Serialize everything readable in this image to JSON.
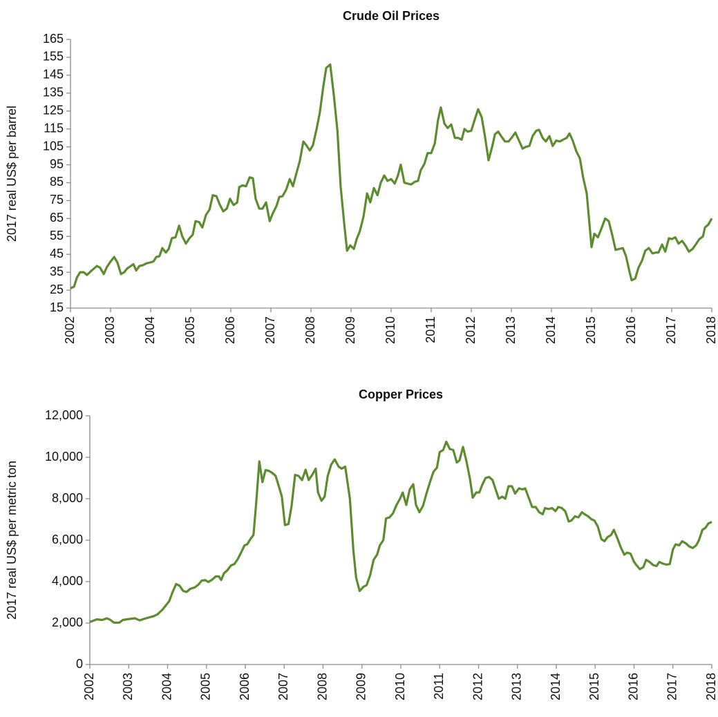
{
  "chart_data": [
    {
      "type": "line",
      "title": "Crude Oil Prices",
      "ylabel": "2017 real US$ per barrel",
      "color": "#5b8c2d",
      "xlim": [
        2002,
        2018
      ],
      "xticks": [
        2002,
        2003,
        2004,
        2005,
        2006,
        2007,
        2008,
        2009,
        2010,
        2011,
        2012,
        2013,
        2014,
        2015,
        2016,
        2017,
        2018
      ],
      "ylim": [
        15,
        165
      ],
      "yticks": [
        15,
        25,
        35,
        45,
        55,
        65,
        75,
        85,
        95,
        105,
        115,
        125,
        135,
        145,
        155,
        165
      ],
      "x": [
        2002.0,
        2002.09,
        2002.16,
        2002.24,
        2002.33,
        2002.41,
        2002.53,
        2002.66,
        2002.74,
        2002.83,
        2002.91,
        2003.0,
        2003.09,
        2003.17,
        2003.26,
        2003.34,
        2003.41,
        2003.57,
        2003.64,
        2003.72,
        2003.81,
        2003.9,
        2004.0,
        2004.07,
        2004.14,
        2004.22,
        2004.29,
        2004.38,
        2004.45,
        2004.53,
        2004.62,
        2004.71,
        2004.79,
        2004.88,
        2004.97,
        2005.05,
        2005.12,
        2005.21,
        2005.29,
        2005.38,
        2005.47,
        2005.55,
        2005.64,
        2005.72,
        2005.81,
        2005.9,
        2005.98,
        2006.07,
        2006.16,
        2006.21,
        2006.29,
        2006.38,
        2006.47,
        2006.55,
        2006.62,
        2006.71,
        2006.79,
        2006.88,
        2006.97,
        2007.05,
        2007.14,
        2007.21,
        2007.29,
        2007.38,
        2007.47,
        2007.55,
        2007.64,
        2007.72,
        2007.81,
        2007.88,
        2007.97,
        2008.05,
        2008.14,
        2008.22,
        2008.31,
        2008.38,
        2008.48,
        2008.57,
        2008.66,
        2008.74,
        2008.83,
        2008.9,
        2008.98,
        2009.07,
        2009.14,
        2009.22,
        2009.31,
        2009.4,
        2009.48,
        2009.57,
        2009.66,
        2009.74,
        2009.83,
        2009.91,
        2010.0,
        2010.09,
        2010.17,
        2010.24,
        2010.33,
        2010.41,
        2010.5,
        2010.59,
        2010.67,
        2010.74,
        2010.83,
        2010.91,
        2011.0,
        2011.09,
        2011.17,
        2011.24,
        2011.33,
        2011.41,
        2011.5,
        2011.59,
        2011.67,
        2011.76,
        2011.83,
        2011.91,
        2012.0,
        2012.09,
        2012.17,
        2012.26,
        2012.34,
        2012.43,
        2012.52,
        2012.59,
        2012.67,
        2012.76,
        2012.84,
        2012.93,
        2013.02,
        2013.1,
        2013.19,
        2013.28,
        2013.36,
        2013.45,
        2013.53,
        2013.62,
        2013.69,
        2013.78,
        2013.86,
        2013.95,
        2014.03,
        2014.12,
        2014.21,
        2014.29,
        2014.38,
        2014.45,
        2014.53,
        2014.62,
        2014.71,
        2014.79,
        2014.88,
        2015.0,
        2015.07,
        2015.16,
        2015.24,
        2015.34,
        2015.43,
        2015.52,
        2015.6,
        2015.69,
        2015.78,
        2015.86,
        2015.95,
        2016.0,
        2016.09,
        2016.17,
        2016.26,
        2016.34,
        2016.43,
        2016.52,
        2016.6,
        2016.67,
        2016.76,
        2016.84,
        2016.93,
        2017.0,
        2017.09,
        2017.17,
        2017.26,
        2017.34,
        2017.43,
        2017.52,
        2017.6,
        2017.69,
        2017.78,
        2017.83,
        2017.91,
        2018.0
      ],
      "values": [
        26,
        27,
        32,
        35,
        35,
        33.5,
        36,
        38.5,
        37.5,
        34,
        38,
        41,
        43.5,
        40.5,
        34,
        35,
        37,
        39.5,
        36,
        38.5,
        39,
        40,
        40.5,
        41,
        43.5,
        44,
        48.5,
        46,
        48,
        54,
        54.5,
        61,
        55,
        51,
        54,
        56,
        63.5,
        63,
        60,
        67,
        70,
        78,
        77.5,
        73,
        69,
        70.5,
        76,
        72.5,
        74,
        82.5,
        83.5,
        83,
        88,
        87.5,
        76,
        70.5,
        70.5,
        74,
        63.5,
        68,
        72,
        77,
        77.5,
        81,
        87,
        83,
        90.5,
        97,
        108,
        106,
        103,
        106,
        115,
        124,
        139,
        149,
        151,
        134,
        114,
        83,
        62,
        47,
        50,
        48,
        53.5,
        58,
        66,
        79,
        74,
        82,
        78,
        85,
        89,
        86,
        87,
        84.5,
        89,
        95,
        85,
        84.5,
        84,
        85.5,
        86,
        92,
        95.5,
        101.5,
        101.5,
        107,
        120,
        127,
        118,
        115.5,
        117.5,
        110,
        110,
        109,
        115,
        113.5,
        114,
        120.5,
        126,
        121.5,
        111,
        97.5,
        105,
        112,
        113.5,
        110.5,
        108,
        108,
        110.5,
        113,
        108.5,
        104,
        105,
        105.5,
        111,
        114,
        114.5,
        110,
        108,
        111,
        105.5,
        108.5,
        108,
        109,
        110,
        112.5,
        108.5,
        102.5,
        98.5,
        88,
        79,
        49,
        56.5,
        54.5,
        59,
        65,
        63.5,
        55.5,
        47.5,
        48,
        48.5,
        44,
        35,
        30.5,
        31.5,
        37.5,
        41.5,
        47,
        48.5,
        45.5,
        46,
        46,
        50.5,
        46.5,
        54,
        53.5,
        54.5,
        51,
        52.5,
        50,
        46.5,
        48,
        50.5,
        53.5,
        55,
        60,
        61.5,
        65
      ]
    },
    {
      "type": "line",
      "title": "Copper Prices",
      "ylabel": "2017 real US$ per metric ton",
      "color": "#5b8c2d",
      "xlim": [
        2002,
        2018
      ],
      "xticks": [
        2002,
        2003,
        2004,
        2005,
        2006,
        2007,
        2008,
        2009,
        2010,
        2011,
        2012,
        2013,
        2014,
        2015,
        2016,
        2017,
        2018
      ],
      "ylim": [
        0,
        12000
      ],
      "yticks": [
        0,
        {
          "value": 2000,
          "label": "2,000"
        },
        {
          "value": 4000,
          "label": "4,000"
        },
        {
          "value": 6000,
          "label": "6,000"
        },
        {
          "value": 8000,
          "label": "8,000"
        },
        {
          "value": 10000,
          "label": "10,000"
        },
        {
          "value": 12000,
          "label": "12,000"
        }
      ],
      "x": [
        2002.0,
        2002.18,
        2002.32,
        2002.44,
        2002.53,
        2002.62,
        2002.76,
        2002.85,
        2003.03,
        2003.16,
        2003.28,
        2003.39,
        2003.64,
        2003.74,
        2003.87,
        2004.04,
        2004.13,
        2004.22,
        2004.31,
        2004.4,
        2004.49,
        2004.58,
        2004.7,
        2004.79,
        2004.88,
        2004.97,
        2005.05,
        2005.15,
        2005.24,
        2005.32,
        2005.38,
        2005.45,
        2005.54,
        2005.63,
        2005.72,
        2005.81,
        2005.89,
        2005.98,
        2006.05,
        2006.13,
        2006.21,
        2006.28,
        2006.36,
        2006.44,
        2006.52,
        2006.6,
        2006.69,
        2006.78,
        2006.87,
        2006.94,
        2007.02,
        2007.11,
        2007.19,
        2007.28,
        2007.37,
        2007.46,
        2007.55,
        2007.63,
        2007.72,
        2007.81,
        2007.87,
        2007.96,
        2008.04,
        2008.12,
        2008.21,
        2008.3,
        2008.4,
        2008.48,
        2008.57,
        2008.69,
        2008.78,
        2008.85,
        2008.94,
        2009.04,
        2009.12,
        2009.21,
        2009.3,
        2009.39,
        2009.46,
        2009.55,
        2009.62,
        2009.71,
        2009.8,
        2009.89,
        2009.98,
        2010.05,
        2010.14,
        2010.23,
        2010.32,
        2010.39,
        2010.48,
        2010.57,
        2010.66,
        2010.75,
        2010.84,
        2010.93,
        2011.0,
        2011.09,
        2011.17,
        2011.26,
        2011.35,
        2011.44,
        2011.51,
        2011.6,
        2011.69,
        2011.78,
        2011.85,
        2011.94,
        2012.02,
        2012.09,
        2012.18,
        2012.27,
        2012.36,
        2012.43,
        2012.52,
        2012.61,
        2012.69,
        2012.77,
        2012.86,
        2012.94,
        2013.04,
        2013.13,
        2013.2,
        2013.29,
        2013.38,
        2013.47,
        2013.56,
        2013.65,
        2013.71,
        2013.8,
        2013.89,
        2013.98,
        2014.05,
        2014.14,
        2014.23,
        2014.32,
        2014.39,
        2014.48,
        2014.57,
        2014.66,
        2014.73,
        2014.82,
        2014.91,
        2014.98,
        2015.07,
        2015.16,
        2015.24,
        2015.32,
        2015.41,
        2015.48,
        2015.57,
        2015.66,
        2015.75,
        2015.82,
        2015.91,
        2016.0,
        2016.06,
        2016.15,
        2016.24,
        2016.31,
        2016.4,
        2016.49,
        2016.58,
        2016.65,
        2016.74,
        2016.83,
        2016.92,
        2017.0,
        2017.07,
        2017.16,
        2017.24,
        2017.33,
        2017.42,
        2017.51,
        2017.6,
        2017.67,
        2017.76,
        2017.84,
        2017.91,
        2018.0
      ],
      "values": [
        2050,
        2180,
        2150,
        2230,
        2150,
        2020,
        2020,
        2150,
        2200,
        2230,
        2130,
        2200,
        2330,
        2420,
        2650,
        3050,
        3500,
        3880,
        3800,
        3550,
        3500,
        3650,
        3720,
        3850,
        4050,
        4070,
        3980,
        4100,
        4250,
        4250,
        4080,
        4400,
        4550,
        4780,
        4850,
        5100,
        5400,
        5750,
        5800,
        6050,
        6250,
        7800,
        9800,
        8800,
        9380,
        9350,
        9250,
        9100,
        8550,
        8100,
        6730,
        6780,
        7650,
        9150,
        9100,
        8900,
        9400,
        8900,
        9150,
        9450,
        8300,
        7900,
        8100,
        9100,
        9650,
        9900,
        9550,
        9450,
        9550,
        8000,
        5500,
        4200,
        3550,
        3750,
        3830,
        4300,
        5050,
        5300,
        5750,
        6000,
        7050,
        7100,
        7300,
        7700,
        8000,
        8300,
        7700,
        8450,
        8700,
        7700,
        7350,
        7650,
        8250,
        8800,
        9300,
        9500,
        10250,
        10350,
        10750,
        10400,
        10350,
        9750,
        9850,
        10500,
        9800,
        8950,
        8050,
        8300,
        8300,
        8650,
        9000,
        9050,
        8900,
        8500,
        8000,
        8100,
        8000,
        8600,
        8600,
        8250,
        8500,
        8450,
        8500,
        8050,
        7600,
        7600,
        7350,
        7250,
        7550,
        7500,
        7550,
        7400,
        7600,
        7550,
        7400,
        6900,
        6950,
        7150,
        7100,
        7350,
        7250,
        7150,
        7000,
        6950,
        6650,
        6050,
        5950,
        6150,
        6250,
        6500,
        6100,
        5650,
        5300,
        5400,
        5350,
        4950,
        4800,
        4600,
        4700,
        5050,
        4950,
        4800,
        4750,
        4950,
        4870,
        4820,
        4850,
        5550,
        5800,
        5750,
        5950,
        5850,
        5700,
        5620,
        5750,
        6000,
        6500,
        6600,
        6800,
        6880
      ]
    }
  ]
}
